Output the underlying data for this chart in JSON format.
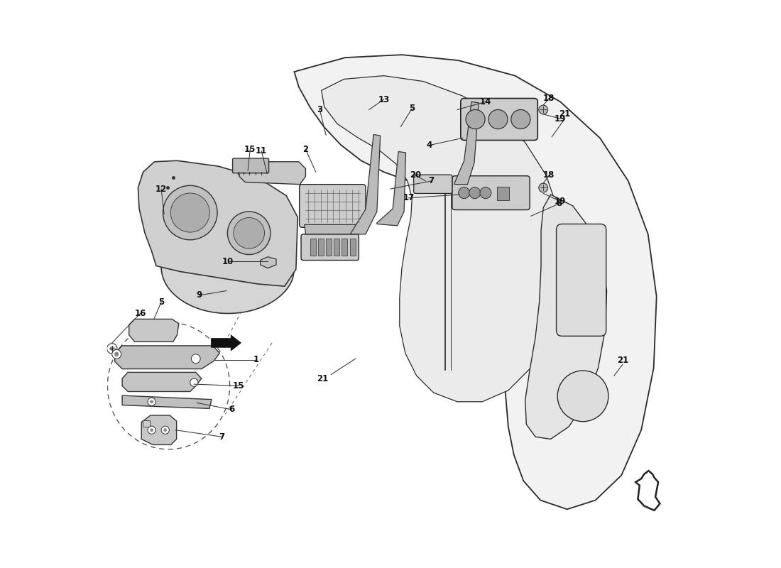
{
  "bg_color": "#ffffff",
  "line_color": "#2a2a2a",
  "figsize": [
    11.0,
    8.0
  ],
  "dpi": 100
}
